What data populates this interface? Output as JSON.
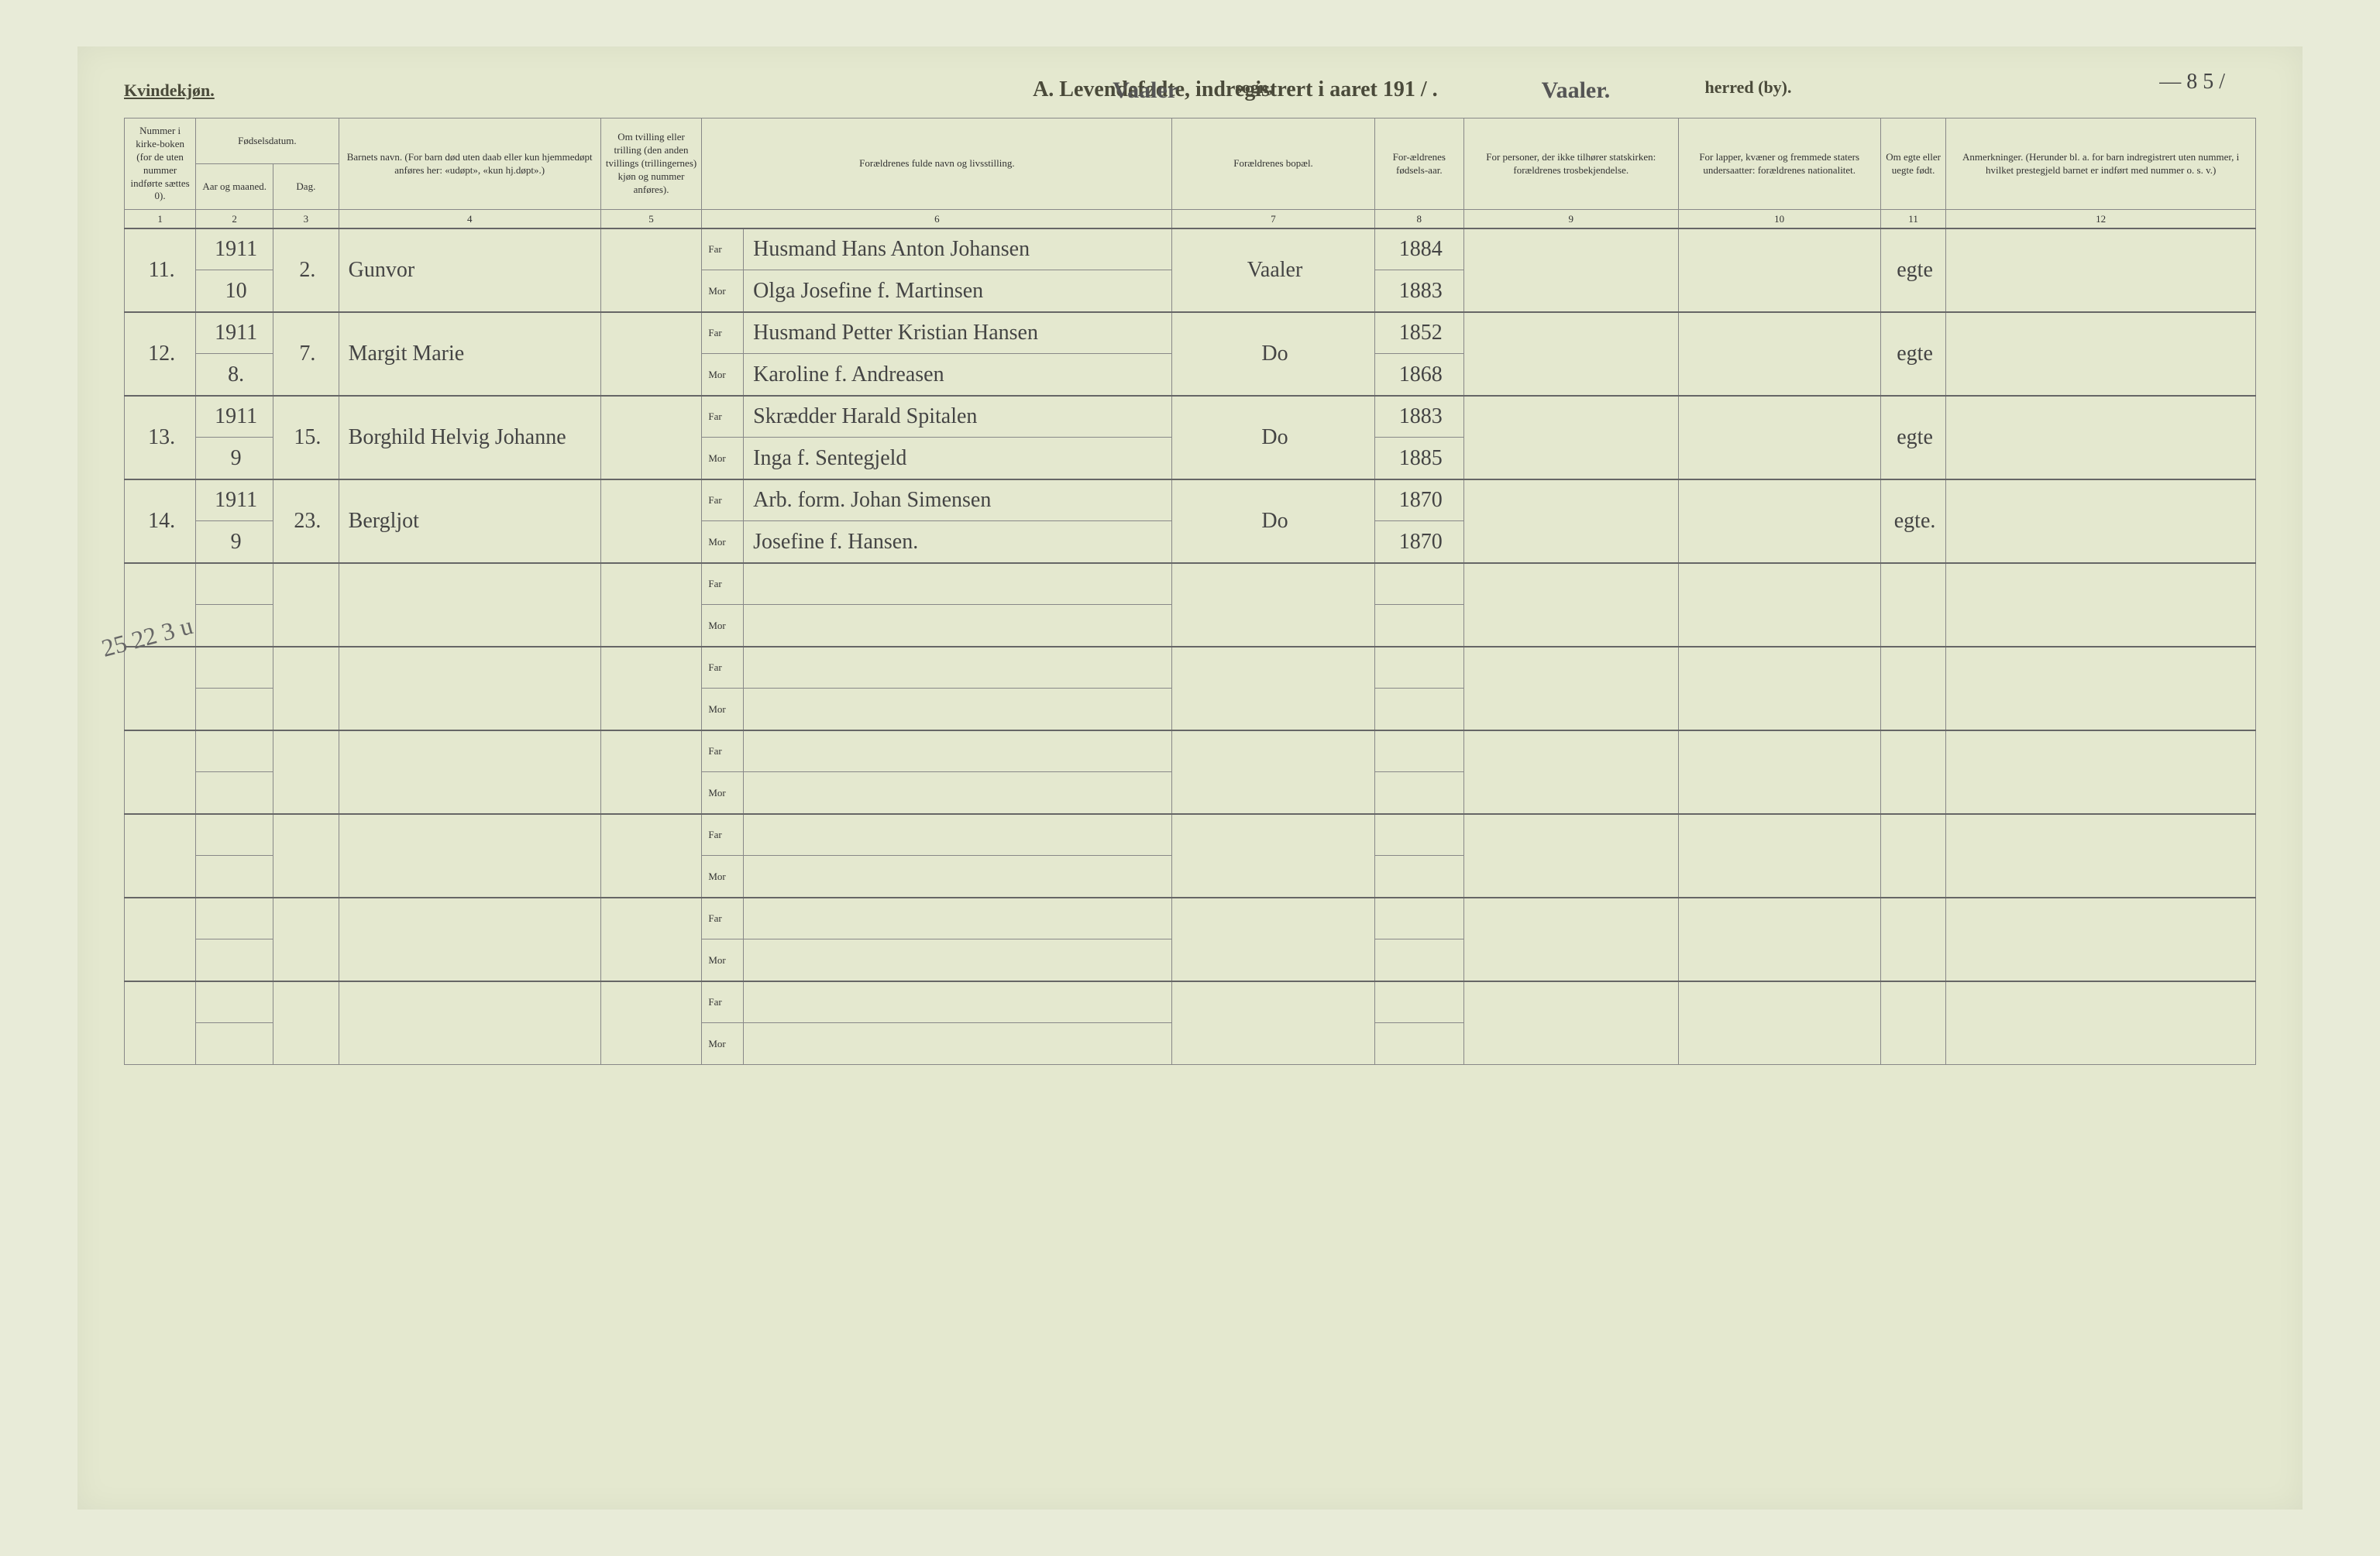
{
  "page_number": "— 8 5 /",
  "header": {
    "left": "Kvindekjøn.",
    "title": "A. Levendefødte, indregistrert i aaret 191 / .",
    "sogn_hand": "Vaaler",
    "sogn_label": "sogn,",
    "herred_hand": "Vaaler.",
    "herred_label": "herred (by)."
  },
  "margin_note": "25\n22   3 u",
  "columns": {
    "c1": "Nummer i kirke-boken (for de uten nummer indførte sættes 0).",
    "c2a": "Aar og maaned.",
    "c2b": "Dag.",
    "c2_top": "Fødselsdatum.",
    "c4": "Barnets navn.\n(For barn død uten daab eller kun hjemmedøpt anføres her: «udøpt», «kun hj.døpt».)",
    "c5": "Om tvilling eller trilling (den anden tvillings (trillingernes) kjøn og nummer anføres).",
    "c6": "Forældrenes fulde navn og livsstilling.",
    "c7": "Forældrenes bopæl.",
    "c8": "For-ældrenes fødsels-aar.",
    "c9": "For personer, der ikke tilhører statskirken: forældrenes trosbekjendelse.",
    "c10": "For lapper, kvæner og fremmede staters undersaatter: forældrenes nationalitet.",
    "c11": "Om egte eller uegte født.",
    "c12": "Anmerkninger.\n(Herunder bl. a. for barn indregistrert uten nummer, i hvilket prestegjeld barnet er indført med nummer o. s. v.)"
  },
  "colnums": [
    "1",
    "2",
    "3",
    "4",
    "5",
    "6",
    "7",
    "8",
    "9",
    "10",
    "11",
    "12"
  ],
  "fm": {
    "far": "Far",
    "mor": "Mor"
  },
  "entries": [
    {
      "num": "11.",
      "year": "1911",
      "month": "10",
      "day": "2.",
      "name": "Gunvor",
      "far": "Husmand Hans Anton Johansen",
      "mor": "Olga Josefine f. Martinsen",
      "abode": "Vaaler",
      "far_year": "1884",
      "mor_year": "1883",
      "leg": "egte"
    },
    {
      "num": "12.",
      "year": "1911",
      "month": "8.",
      "day": "7.",
      "name": "Margit Marie",
      "far": "Husmand Petter Kristian Hansen",
      "mor": "Karoline f. Andreasen",
      "abode": "Do",
      "far_year": "1852",
      "mor_year": "1868",
      "leg": "egte"
    },
    {
      "num": "13.",
      "year": "1911",
      "month": "9",
      "day": "15.",
      "name": "Borghild Helvig Johanne",
      "far": "Skrædder Harald Spitalen",
      "mor": "Inga f. Sentegjeld",
      "abode": "Do",
      "far_year": "1883",
      "mor_year": "1885",
      "leg": "egte"
    },
    {
      "num": "14.",
      "year": "1911",
      "month": "9",
      "day": "23.",
      "name": "Bergljot",
      "far": "Arb. form. Johan Simensen",
      "mor": "Josefine f. Hansen.",
      "abode": "Do",
      "far_year": "1870",
      "mor_year": "1870",
      "leg": "egte."
    }
  ],
  "empty_entries": 6,
  "style": {
    "background": "#e4e8cf",
    "ink": "#444",
    "rule": "#888",
    "handwriting_font": "Brush Script MT",
    "print_font": "Georgia"
  }
}
